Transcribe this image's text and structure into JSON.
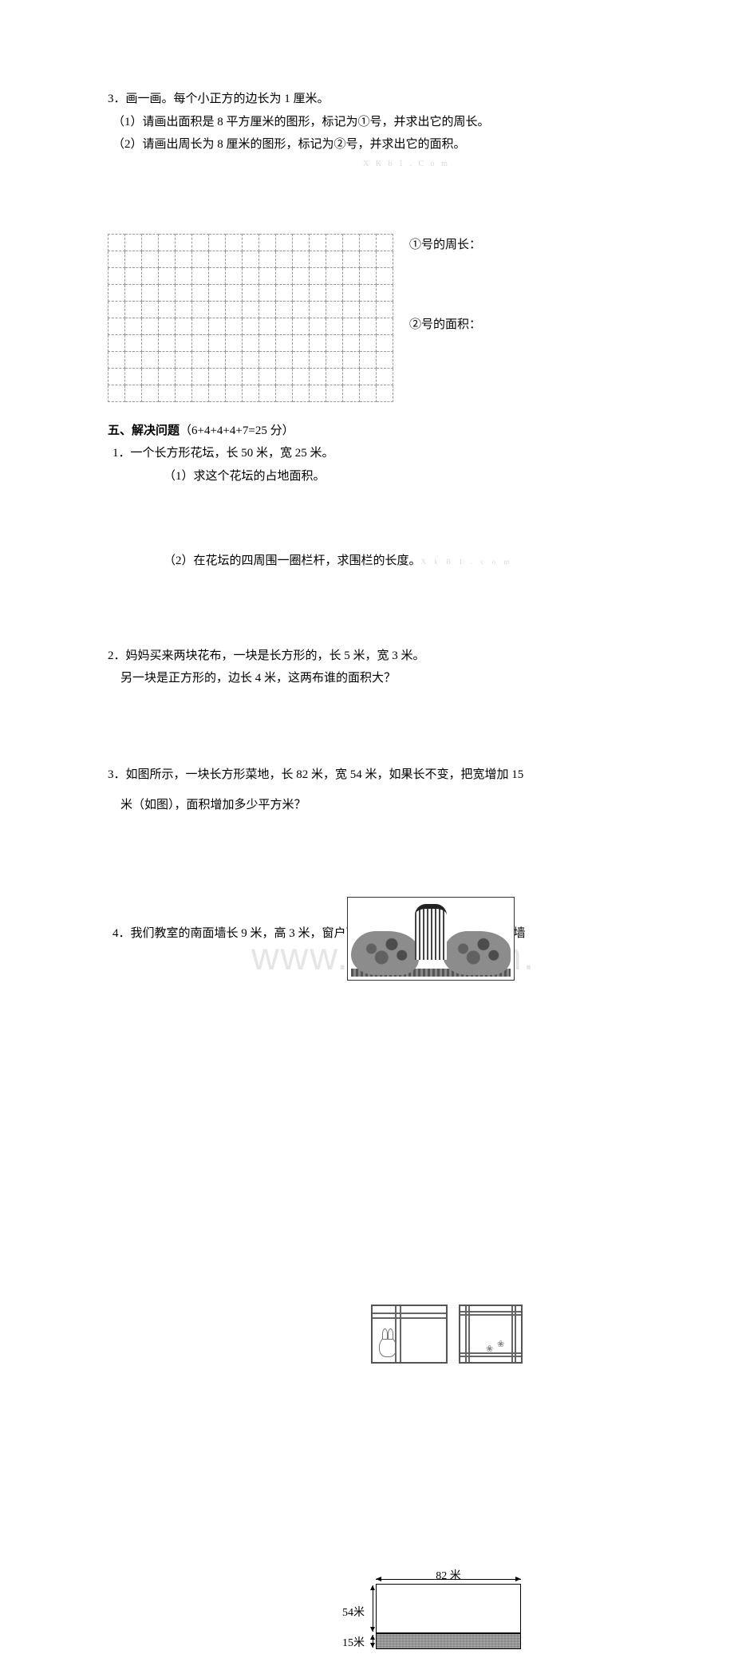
{
  "watermarks": {
    "small1": "X K b 1 . C o m",
    "big": "www.zixin.com.",
    "small2": "X   k B   1 . c o   m"
  },
  "q3": {
    "num": "3．",
    "title": "画一画。每个小正方的边长为 1 厘米。",
    "sub1": "（1）请画出面积是 8 平方厘米的图形，标记为①号，并求出它的周长。",
    "sub2": "（2）请画出周长为 8 厘米的图形，标记为②号，并求出它的面积。",
    "label1": "①号的周长：",
    "label2": "②号的面积："
  },
  "grid": {
    "rows": 10,
    "cols": 17
  },
  "section5": {
    "heading": "五、解决问题",
    "points": "（6+4+4+4+7=25 分）"
  },
  "p1": {
    "num": "1．",
    "title": "一个长方形花坛，长 50 米，宽 25 米。",
    "sub1": "（1）求这个花坛的占地面积。",
    "sub2": "（2）在花坛的四周围一圈栏杆，求围栏的长度。"
  },
  "p2": {
    "text1": "2．妈妈买来两块花布，一块是长方形的，长 5 米，宽 3 米。",
    "text2": "另一块是正方形的，边长 4 米，这两布谁的面积大？"
  },
  "p3": {
    "text1": "3．如图所示，一块长方形菜地，长 82 米，宽 54 米，如果长不变，把宽增加 15",
    "text2": "米（如图），面积增加多少平方米？",
    "labTop": "82 米",
    "lab54": "54米",
    "lab15": "15米"
  },
  "p4": {
    "text": "4．我们教室的南面墙长 9 米，高 3 米，窗户面积 5 平方米，现在要粉刷这面墙"
  },
  "colors": {
    "text": "#000000",
    "grid_border": "#9a9a9a",
    "watermark_light": "#d8d8d8",
    "watermark_big": "rgba(150,150,150,0.25)",
    "background": "#ffffff"
  }
}
